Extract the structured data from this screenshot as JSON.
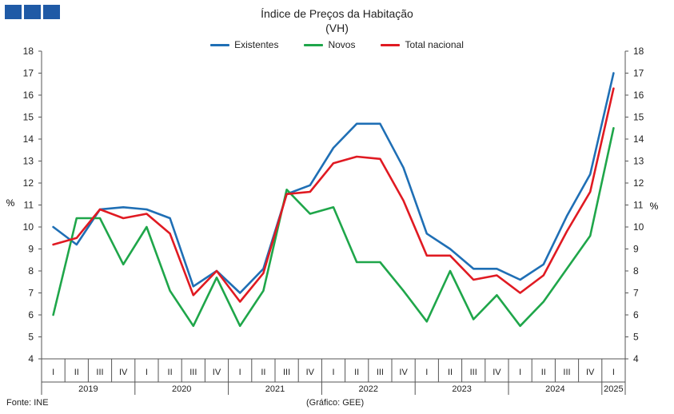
{
  "chart_data": {
    "type": "line",
    "title": "Índice de Preços da Habitação",
    "subtitle": "(VH)",
    "ylabel": "%",
    "ylim": [
      4,
      18
    ],
    "yticks": [
      4,
      5,
      6,
      7,
      8,
      9,
      10,
      11,
      12,
      13,
      14,
      15,
      16,
      17,
      18
    ],
    "grid": false,
    "legend_position": "top-center",
    "quarters": [
      "I",
      "II",
      "III",
      "IV",
      "I",
      "II",
      "III",
      "IV",
      "I",
      "II",
      "III",
      "IV",
      "I",
      "II",
      "III",
      "IV",
      "I",
      "II",
      "III",
      "IV",
      "I",
      "II",
      "III",
      "IV",
      "I"
    ],
    "years": [
      {
        "label": "2019",
        "count": 4
      },
      {
        "label": "2020",
        "count": 4
      },
      {
        "label": "2021",
        "count": 4
      },
      {
        "label": "2022",
        "count": 4
      },
      {
        "label": "2023",
        "count": 4
      },
      {
        "label": "2024",
        "count": 4
      },
      {
        "label": "2025",
        "count": 1
      }
    ],
    "series": [
      {
        "name": "Existentes",
        "color": "#1f6fb5",
        "values": [
          10.0,
          9.2,
          10.8,
          10.9,
          10.8,
          10.4,
          7.3,
          8.0,
          7.0,
          8.1,
          11.5,
          11.9,
          13.6,
          14.7,
          14.7,
          12.7,
          9.7,
          9.0,
          8.1,
          8.1,
          7.6,
          8.3,
          10.5,
          12.4,
          17.0
        ]
      },
      {
        "name": "Novos",
        "color": "#1fa64a",
        "values": [
          6.0,
          10.4,
          10.4,
          8.3,
          10.0,
          7.1,
          5.5,
          7.7,
          5.5,
          7.1,
          11.7,
          10.6,
          10.9,
          8.4,
          8.4,
          7.1,
          5.7,
          8.0,
          5.8,
          6.9,
          5.5,
          6.6,
          8.1,
          9.6,
          14.5
        ]
      },
      {
        "name": "Total nacional",
        "color": "#e01a22",
        "values": [
          9.2,
          9.5,
          10.8,
          10.4,
          10.6,
          9.7,
          6.9,
          8.0,
          6.6,
          7.9,
          11.5,
          11.6,
          12.9,
          13.2,
          13.1,
          11.2,
          8.7,
          8.7,
          7.6,
          7.8,
          7.0,
          7.8,
          9.8,
          11.6,
          16.3
        ]
      }
    ]
  },
  "footer": {
    "source": "Fonte: INE",
    "credit": "(Gráfico: GEE)"
  },
  "colors": {
    "logo": "#1f5aa6",
    "axis": "#555555"
  }
}
